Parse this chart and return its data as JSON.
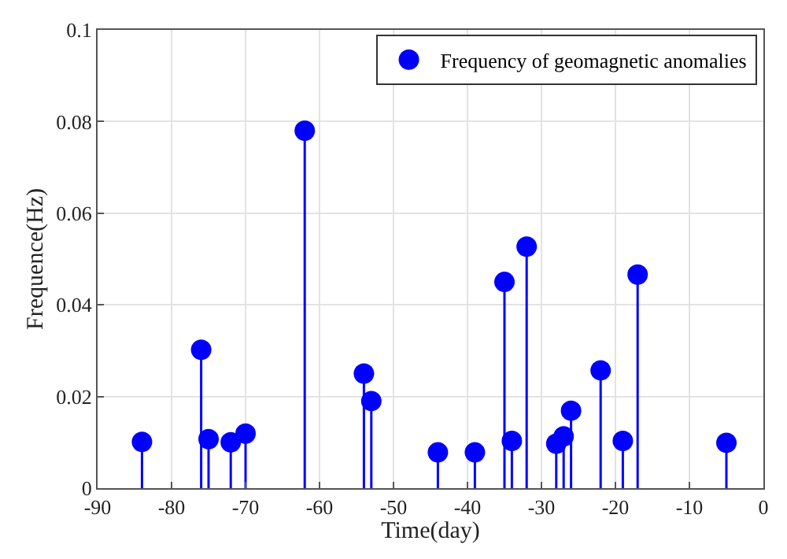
{
  "chart_data": {
    "type": "lollipop",
    "xlabel": "Time(day)",
    "ylabel": "Frequence(Hz)",
    "x": [
      -84,
      -76,
      -75,
      -72,
      -70,
      -62,
      -54,
      -53,
      -44,
      -39,
      -35,
      -34,
      -32,
      -28,
      -27,
      -26,
      -22,
      -19,
      -17,
      -5
    ],
    "series": [
      {
        "name": "Frequency of geomagnetic anomalies",
        "color": "#0000ff",
        "values": [
          0.0101,
          0.0302,
          0.0107,
          0.01,
          0.0119,
          0.078,
          0.025,
          0.019,
          0.0078,
          0.0078,
          0.045,
          0.0103,
          0.0527,
          0.0097,
          0.0113,
          0.0169,
          0.0257,
          0.0103,
          0.0466,
          0.0099
        ]
      }
    ],
    "xlim": [
      -90,
      0
    ],
    "xticks": [
      -90,
      -80,
      -70,
      -60,
      -50,
      -40,
      -30,
      -20,
      -10,
      0
    ],
    "ylim": [
      0,
      0.1
    ],
    "yticks": [
      0,
      0.02,
      0.04,
      0.06,
      0.08,
      0.1
    ],
    "grid": true,
    "legend": "top right",
    "marker": "circle"
  }
}
